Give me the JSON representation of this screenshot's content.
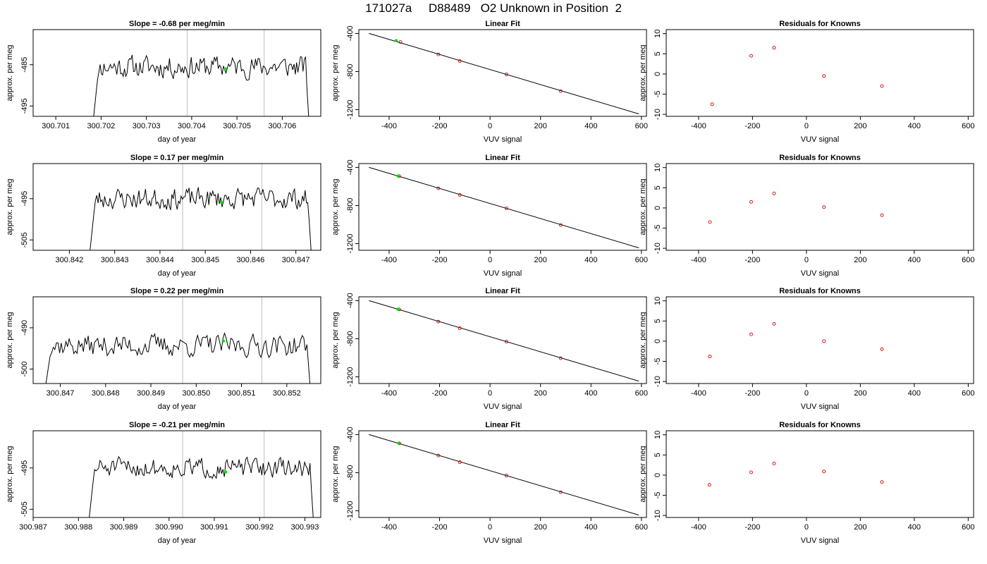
{
  "title": "171027a     D88489   O2 Unknown in Position  2",
  "labels": {
    "day_of_year": "day of year",
    "approx_per_meg": "approx. per meg",
    "vuv_signal": "VUV signal",
    "linear_fit": "Linear Fit",
    "residuals": "Residuals for Knowns"
  },
  "colors": {
    "trace": "#000000",
    "marker": "#00dd00",
    "residual": "#cc0000",
    "guide": "#bebebe",
    "fit_point": "#cc0000"
  },
  "chart_data": [
    {
      "panel": "row1-time-series",
      "type": "line",
      "title": "Slope =  -0.68  per meg/min",
      "xlabel": "day of year",
      "ylabel": "approx. per meg",
      "xlim": [
        300.7005,
        300.70685
      ],
      "ylim": [
        -497.5,
        -476.5
      ],
      "xticks": [
        "300.701",
        "300.702",
        "300.703",
        "300.704",
        "300.705",
        "300.706"
      ],
      "yticks": [
        -485,
        -495
      ],
      "start": 300.70178,
      "end": 300.7066,
      "base": -485.5,
      "amp": 2.4,
      "seed": 11,
      "vlines": [
        300.7039,
        300.7056
      ],
      "marker": {
        "x": 300.70475,
        "y": -486.0
      }
    },
    {
      "panel": "row2-time-series",
      "type": "line",
      "title": "Slope =  0.17  per meg/min",
      "xlabel": "day of year",
      "ylabel": "approx. per meg",
      "xlim": [
        300.8412,
        300.84755
      ],
      "ylim": [
        -507.5,
        -486.5
      ],
      "xticks": [
        "300.842",
        "300.843",
        "300.844",
        "300.845",
        "300.846",
        "300.847"
      ],
      "yticks": [
        -495,
        -505
      ],
      "start": 300.8424,
      "end": 300.84735,
      "base": -495.0,
      "amp": 2.3,
      "seed": 23,
      "vlines": [
        300.8445,
        300.84625
      ],
      "marker": {
        "x": 300.84535,
        "y": -495.8
      }
    },
    {
      "panel": "row3-time-series",
      "type": "line",
      "title": "Slope =  0.22  per meg/min",
      "xlabel": "day of year",
      "ylabel": "approx. per meg",
      "xlim": [
        300.8464,
        300.85275
      ],
      "ylim": [
        -503.5,
        -482.5
      ],
      "xticks": [
        "300.847",
        "300.848",
        "300.849",
        "300.850",
        "300.851",
        "300.852"
      ],
      "yticks": [
        -490,
        -500
      ],
      "start": 300.8466,
      "end": 300.85255,
      "base": -494.3,
      "amp": 2.4,
      "seed": 37,
      "vlines": [
        300.8497,
        300.85145
      ],
      "marker": {
        "x": 300.8506,
        "y": -493.2
      }
    },
    {
      "panel": "row4-time-series",
      "type": "line",
      "title": "Slope =  -0.21  per meg/min",
      "xlabel": "day of year",
      "ylabel": "approx. per meg",
      "xlim": [
        300.987,
        300.99335
      ],
      "ylim": [
        -507.0,
        -486.0
      ],
      "xticks": [
        "300.987",
        "300.988",
        "300.989",
        "300.990",
        "300.991",
        "300.992",
        "300.993"
      ],
      "yticks": [
        -495,
        -505
      ],
      "start": 300.98818,
      "end": 300.9932,
      "base": -495.0,
      "amp": 2.1,
      "seed": 51,
      "vlines": [
        300.9903,
        300.9921
      ],
      "marker": {
        "x": 300.99125,
        "y": -496.0
      }
    },
    {
      "panel": "row1-linear-fit",
      "type": "scatter",
      "title": "Linear Fit",
      "xlabel": "VUV signal",
      "ylabel": "approx. per meg",
      "xlim": [
        -520,
        620
      ],
      "ylim": [
        -1270,
        -360
      ],
      "xticks": [
        -400,
        -200,
        0,
        200,
        400,
        600
      ],
      "yticks": [
        -400,
        -800,
        -1200
      ],
      "fit_line": {
        "x": [
          -480,
          590
        ],
        "y": [
          -400,
          -1245
        ]
      },
      "points": [
        [
          -355,
          -490
        ],
        [
          -205,
          -620
        ],
        [
          -120,
          -690
        ],
        [
          65,
          -830
        ],
        [
          280,
          -1005
        ]
      ],
      "unknown": {
        "x": -372,
        "y": -475
      }
    },
    {
      "panel": "row2-linear-fit",
      "type": "scatter",
      "title": "Linear Fit",
      "xlabel": "VUV signal",
      "ylabel": "approx. per meg",
      "xlim": [
        -520,
        620
      ],
      "ylim": [
        -1270,
        -360
      ],
      "xticks": [
        -400,
        -200,
        0,
        200,
        400,
        600
      ],
      "yticks": [
        -400,
        -800,
        -1200
      ],
      "fit_line": {
        "x": [
          -480,
          590
        ],
        "y": [
          -400,
          -1245
        ]
      },
      "points": [
        [
          -360,
          -492
        ],
        [
          -205,
          -620
        ],
        [
          -120,
          -690
        ],
        [
          65,
          -830
        ],
        [
          280,
          -1005
        ]
      ],
      "unknown": {
        "x": -365,
        "y": -490
      }
    },
    {
      "panel": "row3-linear-fit",
      "type": "scatter",
      "title": "Linear Fit",
      "xlabel": "VUV signal",
      "ylabel": "approx. per meg",
      "xlim": [
        -520,
        620
      ],
      "ylim": [
        -1270,
        -360
      ],
      "xticks": [
        -400,
        -200,
        0,
        200,
        400,
        600
      ],
      "yticks": [
        -400,
        -800,
        -1200
      ],
      "fit_line": {
        "x": [
          -480,
          590
        ],
        "y": [
          -400,
          -1245
        ]
      },
      "points": [
        [
          -360,
          -492
        ],
        [
          -205,
          -620
        ],
        [
          -120,
          -690
        ],
        [
          65,
          -830
        ],
        [
          280,
          -1005
        ]
      ],
      "unknown": {
        "x": -366,
        "y": -490
      }
    },
    {
      "panel": "row4-linear-fit",
      "type": "scatter",
      "title": "Linear Fit",
      "xlabel": "VUV signal",
      "ylabel": "approx. per meg",
      "xlim": [
        -520,
        620
      ],
      "ylim": [
        -1270,
        -360
      ],
      "xticks": [
        -400,
        -200,
        0,
        200,
        400,
        600
      ],
      "yticks": [
        -400,
        -800,
        -1200
      ],
      "fit_line": {
        "x": [
          -480,
          590
        ],
        "y": [
          -400,
          -1245
        ]
      },
      "points": [
        [
          -360,
          -492
        ],
        [
          -205,
          -620
        ],
        [
          -120,
          -690
        ],
        [
          65,
          -830
        ],
        [
          280,
          -1005
        ]
      ],
      "unknown": {
        "x": -362,
        "y": -490
      }
    },
    {
      "panel": "row1-residuals",
      "type": "scatter",
      "title": "Residuals for Knowns",
      "xlabel": "VUV signal",
      "ylabel": "approx. per meg",
      "xlim": [
        -520,
        620
      ],
      "ylim": [
        -10.5,
        11
      ],
      "xticks": [
        -400,
        -200,
        0,
        200,
        400,
        600
      ],
      "yticks": [
        10,
        5,
        0,
        -5,
        -10
      ],
      "points": [
        [
          -350,
          -7.5
        ],
        [
          -205,
          4.5
        ],
        [
          -120,
          6.5
        ],
        [
          65,
          -0.5
        ],
        [
          280,
          -3.0
        ]
      ]
    },
    {
      "panel": "row2-residuals",
      "type": "scatter",
      "title": "Residuals for Knowns",
      "xlabel": "VUV signal",
      "ylabel": "approx. per meg",
      "xlim": [
        -520,
        620
      ],
      "ylim": [
        -10.5,
        11
      ],
      "xticks": [
        -400,
        -200,
        0,
        200,
        400,
        600
      ],
      "yticks": [
        10,
        5,
        0,
        -5,
        -10
      ],
      "points": [
        [
          -358,
          -3.5
        ],
        [
          -205,
          1.5
        ],
        [
          -120,
          3.6
        ],
        [
          65,
          0.2
        ],
        [
          280,
          -1.8
        ]
      ]
    },
    {
      "panel": "row3-residuals",
      "type": "scatter",
      "title": "Residuals for Knowns",
      "xlabel": "VUV signal",
      "ylabel": "approx. per meg",
      "xlim": [
        -520,
        620
      ],
      "ylim": [
        -10.5,
        11
      ],
      "xticks": [
        -400,
        -200,
        0,
        200,
        400,
        600
      ],
      "yticks": [
        10,
        5,
        0,
        -5,
        -10
      ],
      "points": [
        [
          -358,
          -3.8
        ],
        [
          -205,
          1.7
        ],
        [
          -120,
          4.3
        ],
        [
          65,
          0.0
        ],
        [
          280,
          -2.0
        ]
      ]
    },
    {
      "panel": "row4-residuals",
      "type": "scatter",
      "title": "Residuals for Knowns",
      "xlabel": "VUV signal",
      "ylabel": "approx. per meg",
      "xlim": [
        -520,
        620
      ],
      "ylim": [
        -10.5,
        11
      ],
      "xticks": [
        -400,
        -200,
        0,
        200,
        400,
        600
      ],
      "yticks": [
        10,
        5,
        0,
        -5,
        -10
      ],
      "points": [
        [
          -360,
          -2.4
        ],
        [
          -205,
          0.7
        ],
        [
          -120,
          2.9
        ],
        [
          65,
          0.9
        ],
        [
          280,
          -1.7
        ]
      ]
    }
  ]
}
